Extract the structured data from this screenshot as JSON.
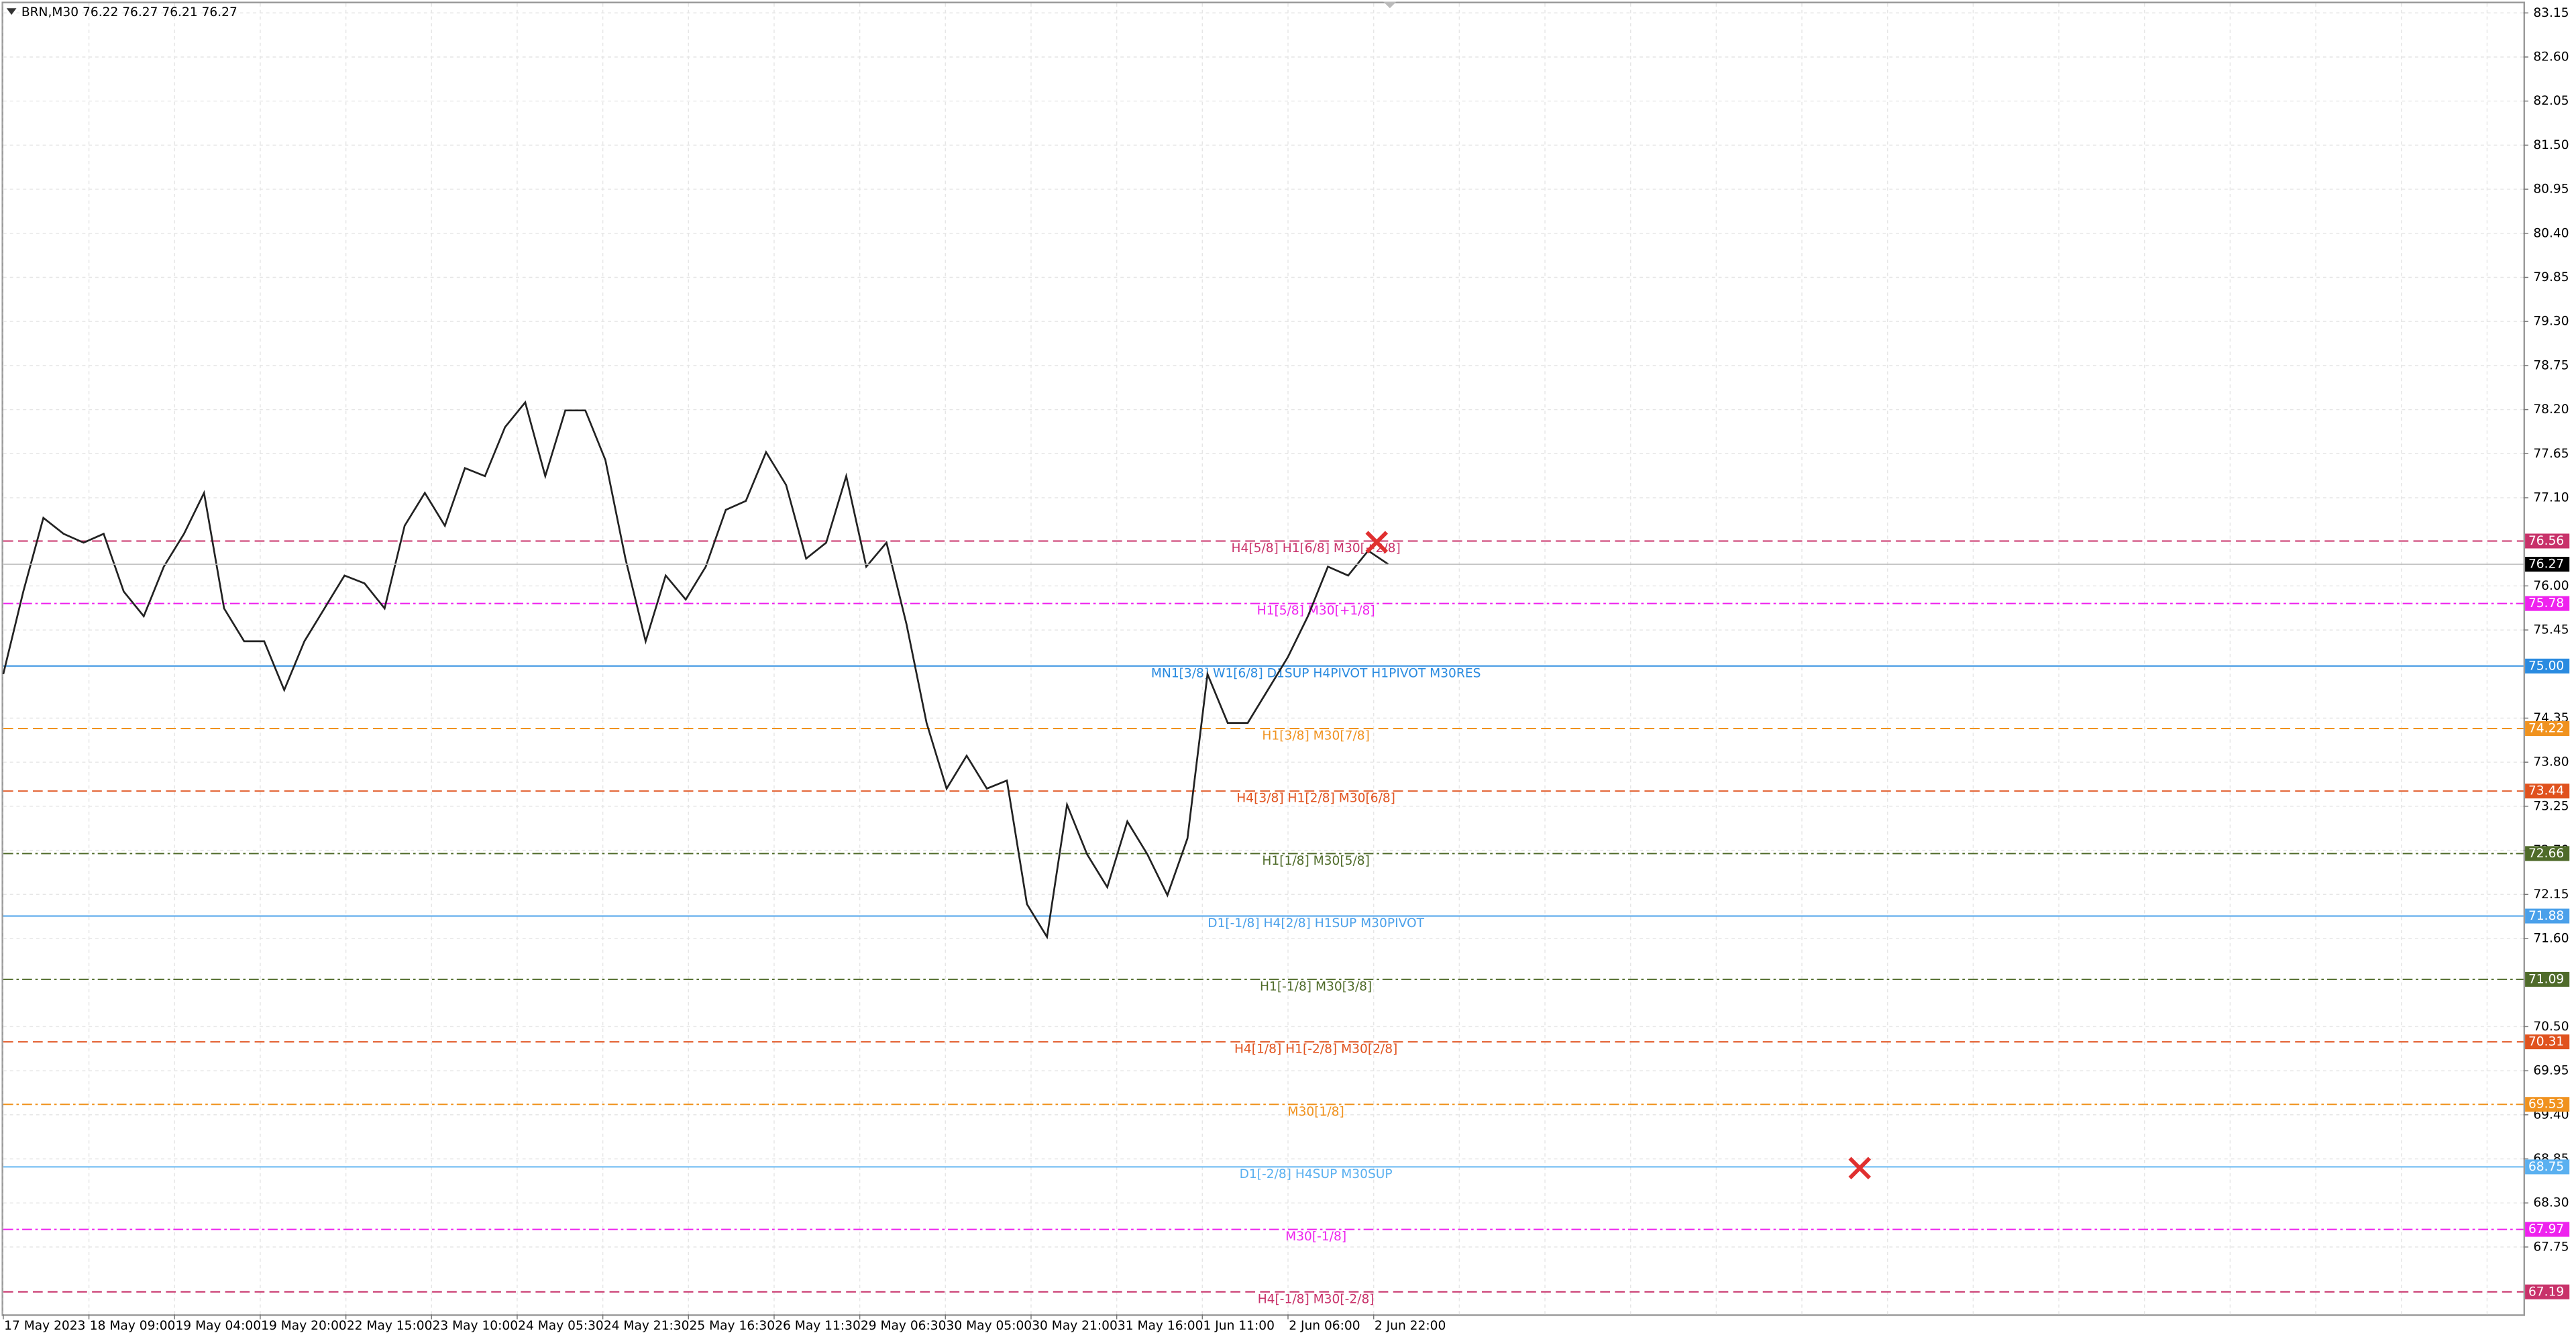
{
  "header": "BRN,M30  76.22 76.27 76.21 76.27",
  "chart_data": {
    "type": "line",
    "grid": true,
    "color": "#222222",
    "ylim": [
      66.91,
      83.27
    ],
    "yticks": [
      83.15,
      {
        "value": 82.6,
        "label": "82.60"
      },
      82.05,
      {
        "value": 81.5,
        "label": "81.50"
      },
      80.95,
      {
        "value": 80.4,
        "label": "80.40"
      },
      79.85,
      {
        "value": 79.3,
        "label": "79.30"
      },
      78.75,
      {
        "value": 78.2,
        "label": "78.20"
      },
      77.65,
      {
        "value": 77.1,
        "label": "77.10"
      },
      {
        "value": 76,
        "label": "76.00"
      },
      75.45,
      74.35,
      {
        "value": 73.8,
        "label": "73.80"
      },
      73.25,
      {
        "value": 72.7,
        "label": "72.70"
      },
      72.15,
      {
        "value": 71.6,
        "label": "71.60"
      },
      {
        "value": 70.5,
        "label": "70.50"
      },
      69.95,
      {
        "value": 69.4,
        "label": "69.40"
      },
      68.85,
      {
        "value": 68.3,
        "label": "68.30"
      },
      67.75
    ],
    "x_labels": [
      "17 May 2023",
      "18 May 09:00",
      "19 May 04:00",
      "19 May 20:00",
      "22 May 15:00",
      "23 May 10:00",
      "24 May 05:30",
      "24 May 21:30",
      "25 May 16:30",
      "26 May 11:30",
      "29 May 06:30",
      "30 May 05:00",
      "30 May 21:00",
      "31 May 16:00",
      "1 Jun 11:00",
      "2 Jun 06:00",
      "2 Jun 22:00"
    ],
    "values": [
      74.9,
      75.93,
      76.85,
      76.65,
      76.54,
      76.65,
      75.93,
      75.62,
      76.24,
      76.65,
      77.16,
      75.72,
      75.31,
      75.31,
      74.7,
      75.31,
      75.72,
      76.13,
      76.03,
      75.72,
      76.75,
      77.16,
      76.75,
      77.47,
      77.37,
      77.98,
      78.29,
      77.37,
      78.19,
      78.19,
      77.57,
      76.34,
      75.31,
      76.13,
      75.83,
      76.24,
      76.95,
      77.06,
      77.67,
      77.26,
      76.34,
      76.54,
      77.37,
      76.24,
      76.54,
      75.52,
      74.29,
      73.47,
      73.88,
      73.47,
      73.57,
      72.03,
      71.62,
      73.27,
      72.65,
      72.24,
      73.06,
      72.65,
      72.14,
      72.85,
      74.9,
      74.29,
      74.29,
      74.7,
      75.11,
      75.62,
      76.24,
      76.13,
      76.44,
      76.27
    ],
    "current_price": 76.27,
    "levels": [
      {
        "value": 76.56,
        "label": "H4[5/8] H1[6/8] M30[+2/8]",
        "color": "#c8326a",
        "style": "dashed"
      },
      {
        "value": 75.78,
        "label": "H1[5/8] M30[+1/8]",
        "color": "#ee22ee",
        "style": "dashdot"
      },
      {
        "value": 75.0,
        "price_label": "75.00",
        "label": "MN1[3/8] W1[6/8] D1SUP H4PIVOT H1PIVOT M30RES",
        "color": "#2a8be0",
        "style": "solid"
      },
      {
        "value": 74.22,
        "label": "H1[3/8] M30[7/8]",
        "color": "#f0921e",
        "style": "dashed"
      },
      {
        "value": 73.44,
        "label": "H4[3/8] H1[2/8] M30[6/8]",
        "color": "#e0521e",
        "style": "dashed"
      },
      {
        "value": 72.66,
        "label": "H1[1/8] M30[5/8]",
        "color": "#4f6b2a",
        "style": "dashdot"
      },
      {
        "value": 71.88,
        "label": "D1[-1/8] H4[2/8] H1SUP M30PIVOT",
        "color": "#4aa0ea",
        "style": "solid"
      },
      {
        "value": 71.09,
        "label": "H1[-1/8] M30[3/8]",
        "color": "#4f6b2a",
        "style": "dashdot"
      },
      {
        "value": 70.31,
        "label": "H4[1/8] H1[-2/8] M30[2/8]",
        "color": "#e0521e",
        "style": "dashed"
      },
      {
        "value": 69.53,
        "label": "M30[1/8]",
        "color": "#f0921e",
        "style": "dashdot"
      },
      {
        "value": 68.75,
        "label": "D1[-2/8] H4SUP M30SUP",
        "color": "#5ab0f0",
        "style": "solid"
      },
      {
        "value": 67.97,
        "label": "M30[-1/8]",
        "color": "#ee22ee",
        "style": "dashdot"
      },
      {
        "value": 67.19,
        "label": "H4[-1/8] M30[-2/8]",
        "color": "#c8326a",
        "style": "dashed"
      }
    ]
  }
}
